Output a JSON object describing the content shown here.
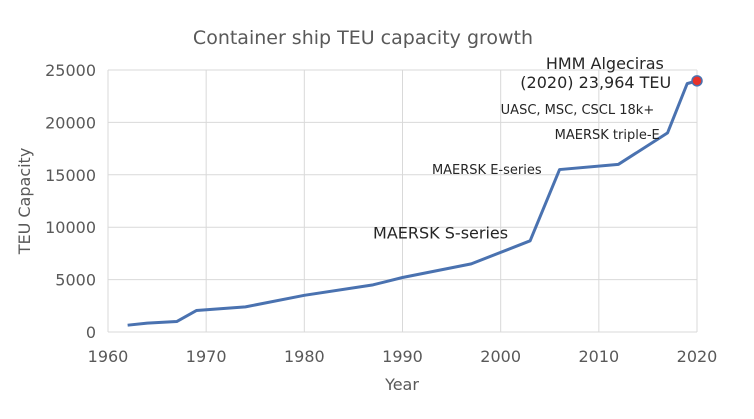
{
  "chart_data": {
    "type": "line",
    "title": "Container ship TEU capacity growth",
    "xlabel": "Year",
    "ylabel": "TEU Capacity",
    "xlim": [
      1960,
      2020
    ],
    "ylim": [
      0,
      25000
    ],
    "xticks": [
      "1960",
      "1970",
      "1980",
      "1990",
      "2000",
      "2010",
      "2020"
    ],
    "yticks": [
      "0",
      "5000",
      "10000",
      "15000",
      "20000",
      "25000"
    ],
    "grid": true,
    "line_color": "#4a72b0",
    "marker_color": "#e8322a",
    "x": [
      1962,
      1964,
      1967,
      1969,
      1974,
      1980,
      1987,
      1990,
      1997,
      2003,
      2006,
      2012,
      2017,
      2019,
      2020
    ],
    "values": [
      650,
      850,
      1000,
      2050,
      2400,
      3500,
      4500,
      5200,
      6500,
      8700,
      15500,
      16000,
      19000,
      23700,
      23964
    ],
    "annotations": [
      {
        "text": "MAERSK S-series",
        "x": 1987,
        "y": 8900,
        "size": 16
      },
      {
        "text": "MAERSK E-series",
        "x": 1993,
        "y": 15100,
        "size": 13
      },
      {
        "text": "MAERSK triple-E",
        "x": 2005.5,
        "y": 18400,
        "size": 13
      },
      {
        "text": "UASC, MSC, CSCL 18k+",
        "x": 2000,
        "y": 20800,
        "size": 13
      },
      {
        "text": "HMM Algeciras",
        "x": 2004.6,
        "y": 25100,
        "size": 16
      },
      {
        "text": "(2020) 23,964 TEU",
        "x": 2002,
        "y": 23300,
        "size": 16
      }
    ]
  }
}
